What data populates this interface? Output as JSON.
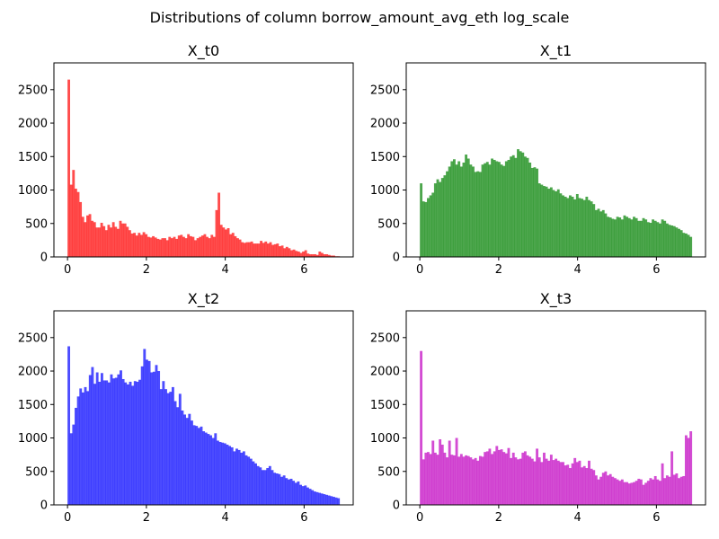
{
  "figure": {
    "title": "Distributions of column borrow_amount_avg_eth log_scale"
  },
  "chart_data": [
    {
      "type": "bar",
      "title": "X_t0",
      "color": "#ff0000",
      "opacity": 0.7,
      "x_range": [
        0,
        6.9
      ],
      "xlim": [
        -0.345,
        7.245
      ],
      "ylim": [
        0,
        2900
      ],
      "xticks": [
        0,
        2,
        4,
        6
      ],
      "yticks": [
        0,
        500,
        1000,
        1500,
        2000,
        2500
      ],
      "values": [
        2650,
        1080,
        1300,
        1020,
        970,
        820,
        600,
        520,
        620,
        640,
        540,
        520,
        440,
        440,
        510,
        460,
        400,
        480,
        440,
        520,
        450,
        420,
        540,
        500,
        500,
        450,
        400,
        350,
        360,
        320,
        360,
        330,
        370,
        340,
        300,
        290,
        310,
        290,
        270,
        260,
        280,
        280,
        250,
        300,
        280,
        300,
        270,
        320,
        330,
        300,
        280,
        340,
        310,
        300,
        250,
        280,
        300,
        320,
        340,
        300,
        280,
        330,
        300,
        700,
        960,
        480,
        440,
        410,
        430,
        340,
        360,
        310,
        280,
        260,
        220,
        210,
        220,
        220,
        230,
        200,
        200,
        200,
        240,
        210,
        230,
        200,
        220,
        180,
        190,
        200,
        160,
        170,
        130,
        150,
        130,
        100,
        110,
        90,
        80,
        60,
        80,
        100,
        50,
        40,
        40,
        40,
        30,
        80,
        60,
        40,
        40,
        30,
        20,
        20,
        10,
        10
      ]
    },
    {
      "type": "bar",
      "title": "X_t1",
      "color": "#008000",
      "opacity": 0.7,
      "x_range": [
        0,
        6.9
      ],
      "xlim": [
        -0.345,
        7.245
      ],
      "ylim": [
        0,
        2900
      ],
      "xticks": [
        0,
        2,
        4,
        6
      ],
      "yticks": [
        0,
        500,
        1000,
        1500,
        2000,
        2500
      ],
      "values": [
        1100,
        830,
        820,
        880,
        920,
        960,
        1100,
        1160,
        1120,
        1180,
        1220,
        1280,
        1350,
        1430,
        1460,
        1380,
        1430,
        1350,
        1410,
        1530,
        1470,
        1380,
        1350,
        1270,
        1280,
        1270,
        1380,
        1400,
        1420,
        1380,
        1470,
        1450,
        1430,
        1420,
        1380,
        1360,
        1430,
        1450,
        1500,
        1520,
        1480,
        1610,
        1580,
        1560,
        1500,
        1480,
        1410,
        1330,
        1340,
        1320,
        1100,
        1080,
        1060,
        1050,
        1020,
        1040,
        1000,
        980,
        1010,
        950,
        920,
        900,
        880,
        920,
        900,
        860,
        940,
        880,
        870,
        850,
        900,
        850,
        830,
        790,
        700,
        720,
        680,
        700,
        650,
        600,
        590,
        570,
        560,
        600,
        590,
        560,
        620,
        600,
        580,
        560,
        600,
        580,
        540,
        540,
        580,
        560,
        520,
        510,
        560,
        540,
        520,
        500,
        560,
        540,
        500,
        480,
        470,
        460,
        440,
        420,
        400,
        360,
        350,
        330,
        300
      ]
    },
    {
      "type": "bar",
      "title": "X_t2",
      "color": "#0000ff",
      "opacity": 0.7,
      "x_range": [
        0,
        6.9
      ],
      "xlim": [
        -0.345,
        7.245
      ],
      "ylim": [
        0,
        2900
      ],
      "xticks": [
        0,
        2,
        4,
        6
      ],
      "yticks": [
        0,
        500,
        1000,
        1500,
        2000,
        2500
      ],
      "values": [
        2370,
        1070,
        1200,
        1450,
        1620,
        1740,
        1680,
        1760,
        1700,
        1940,
        2060,
        1810,
        1980,
        1840,
        1970,
        1860,
        1860,
        1830,
        1950,
        1890,
        1900,
        1950,
        2010,
        1880,
        1830,
        1800,
        1840,
        1780,
        1850,
        1840,
        1870,
        2070,
        2330,
        2170,
        2150,
        1980,
        1990,
        2090,
        2000,
        1730,
        1850,
        1730,
        1670,
        1690,
        1760,
        1550,
        1460,
        1660,
        1410,
        1350,
        1300,
        1360,
        1260,
        1190,
        1180,
        1150,
        1170,
        1100,
        1080,
        1060,
        1040,
        1000,
        1070,
        960,
        940,
        930,
        920,
        900,
        880,
        860,
        800,
        840,
        820,
        780,
        800,
        740,
        720,
        690,
        650,
        620,
        580,
        560,
        520,
        520,
        550,
        580,
        520,
        480,
        470,
        460,
        420,
        440,
        400,
        380,
        390,
        360,
        330,
        350,
        300,
        280,
        290,
        260,
        240,
        220,
        200,
        190,
        180,
        170,
        160,
        150,
        140,
        130,
        120,
        110,
        100
      ]
    },
    {
      "type": "bar",
      "title": "X_t3",
      "color": "#c000c0",
      "opacity": 0.7,
      "x_range": [
        0,
        6.9
      ],
      "xlim": [
        -0.345,
        7.245
      ],
      "ylim": [
        0,
        2900
      ],
      "xticks": [
        0,
        2,
        4,
        6
      ],
      "yticks": [
        0,
        500,
        1000,
        1500,
        2000,
        2500
      ],
      "values": [
        2300,
        680,
        780,
        790,
        760,
        960,
        780,
        750,
        980,
        900,
        780,
        710,
        960,
        750,
        740,
        1000,
        720,
        760,
        720,
        740,
        730,
        710,
        680,
        700,
        660,
        730,
        720,
        790,
        800,
        840,
        760,
        800,
        880,
        820,
        830,
        790,
        770,
        850,
        700,
        780,
        710,
        680,
        690,
        780,
        800,
        740,
        720,
        690,
        650,
        840,
        710,
        640,
        780,
        690,
        660,
        750,
        670,
        690,
        660,
        640,
        640,
        590,
        600,
        550,
        620,
        700,
        640,
        660,
        560,
        580,
        550,
        660,
        540,
        520,
        440,
        380,
        420,
        480,
        500,
        440,
        460,
        420,
        400,
        380,
        360,
        380,
        340,
        340,
        320,
        330,
        340,
        360,
        390,
        380,
        300,
        330,
        360,
        400,
        380,
        430,
        380,
        360,
        620,
        400,
        440,
        420,
        800,
        450,
        470,
        400,
        420,
        430,
        1040,
        1000,
        1100
      ]
    }
  ]
}
